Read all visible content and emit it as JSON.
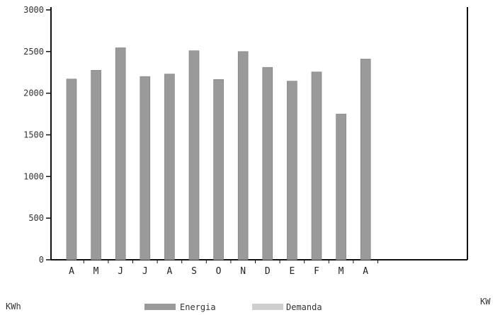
{
  "chart_data": {
    "type": "bar",
    "categories": [
      "A",
      "M",
      "J",
      "J",
      "A",
      "S",
      "O",
      "N",
      "D",
      "E",
      "F",
      "M",
      "A"
    ],
    "series": [
      {
        "name": "Energia",
        "values": [
          2170,
          2275,
          2545,
          2200,
          2230,
          2510,
          2165,
          2500,
          2310,
          2145,
          2255,
          1750,
          2410
        ]
      },
      {
        "name": "Demanda",
        "values": [
          null,
          null,
          null,
          null,
          null,
          null,
          null,
          null,
          null,
          null,
          null,
          null,
          null
        ]
      }
    ],
    "y_ticks": [
      "3000",
      "2500",
      "2000",
      "1500",
      "1000",
      "500",
      "0"
    ],
    "ylim": [
      0,
      3000
    ],
    "left_unit": "KWh",
    "right_unit": "KW",
    "legend_position": "bottom",
    "grid": false,
    "colors": {
      "energia": "#9a9a9a",
      "demanda": "#cfcfcf",
      "axis": "#111111"
    }
  }
}
